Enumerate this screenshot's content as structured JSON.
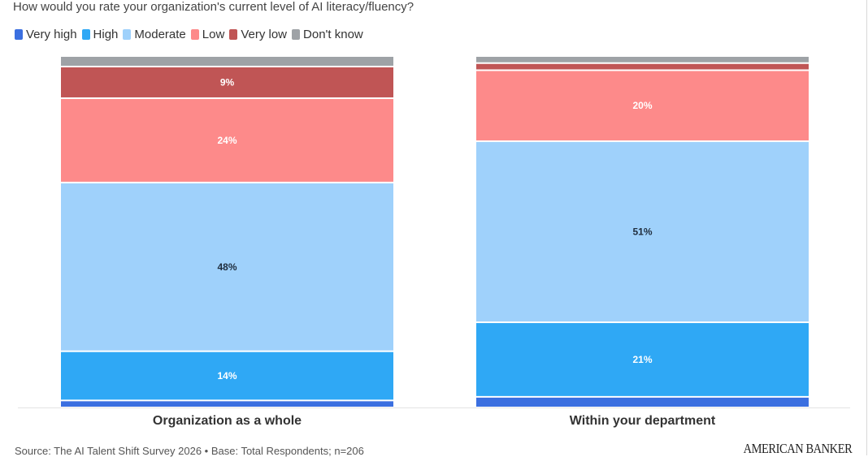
{
  "chart_data": {
    "type": "bar",
    "stacked": true,
    "title": "How would you rate your organization's current level of AI literacy/fluency?",
    "categories": [
      "Organization as a whole",
      "Within your department"
    ],
    "series": [
      {
        "name": "Very high",
        "color": "#3b6fe0",
        "values": [
          2,
          3
        ]
      },
      {
        "name": "High",
        "color": "#2fa8f5",
        "values": [
          14,
          21
        ]
      },
      {
        "name": "Moderate",
        "color": "#9fd1fb",
        "values": [
          48,
          51
        ]
      },
      {
        "name": "Low",
        "color": "#fd8a8a",
        "values": [
          24,
          20
        ]
      },
      {
        "name": "Very low",
        "color": "#c05555",
        "values": [
          9,
          2
        ]
      },
      {
        "name": "Don't know",
        "color": "#9ea2a6",
        "values": [
          3,
          2
        ]
      }
    ],
    "data_labels": [
      [
        "",
        "14%",
        "48%",
        "24%",
        "9%",
        ""
      ],
      [
        "",
        "21%",
        "51%",
        "20%",
        "",
        ""
      ]
    ],
    "ylim": [
      0,
      100
    ],
    "legend": "top-left",
    "grid": false
  },
  "footer": {
    "source": "Source: The AI Talent Shift Survey 2026 • Base: Total Respondents; n=206",
    "logo": "AMERICAN BANKER"
  }
}
